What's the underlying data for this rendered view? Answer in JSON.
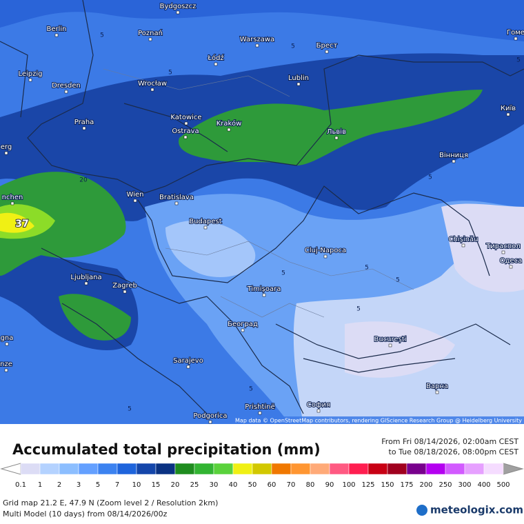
{
  "map": {
    "cities": [
      "Bydgoszcz",
      "Berlin",
      "Poznań",
      "Warszawa",
      "Брест",
      "Гоме",
      "Łódź",
      "Leipzig",
      "Lublin",
      "Dresden",
      "Wrocław",
      "Київ",
      "Praha",
      "Katowice",
      "Kraków",
      "Ostrava",
      "Львів",
      "erg",
      "Вінниця",
      "Wien",
      "Bratislava",
      "nchen",
      "Budapest",
      "Chișinău",
      "Тираспол",
      "Cluj-Napoca",
      "Одеса",
      "Ljubljana",
      "Zagreb",
      "Timișoara",
      "Београд",
      "gna",
      "București",
      "nze",
      "Sarajevo",
      "Варна",
      "Podgorica",
      "Prishtinë",
      "София"
    ],
    "contour_labels": [
      "5",
      "5",
      "5",
      "5",
      "5",
      "20",
      "37",
      "5",
      "5",
      "5",
      "5",
      "5",
      "5"
    ],
    "attribution": "Map data © OpenStreetMap contributors, rendering GIScience Research Group @ Heidelberg University"
  },
  "title": "Accumulated total precipitation (mm)",
  "period": {
    "from": "From Fri 08/14/2026, 02:00am CEST",
    "to": "to Tue 08/18/2026, 08:00pm CEST"
  },
  "legend": {
    "values": [
      0.1,
      1,
      2,
      3,
      5,
      7,
      10,
      15,
      20,
      25,
      30,
      40,
      50,
      60,
      70,
      80,
      90,
      100,
      125,
      150,
      175,
      200,
      250,
      300,
      400,
      500
    ],
    "colors": [
      "#dcdcf5",
      "#b4d2ff",
      "#8cbeff",
      "#64a0ff",
      "#3c82f0",
      "#1e64dc",
      "#1446aa",
      "#0a3282",
      "#1e8c1e",
      "#32b432",
      "#5ad23c",
      "#f0f014",
      "#d2c800",
      "#f07800",
      "#ff9632",
      "#ffaa78",
      "#ff5a82",
      "#ff1e50",
      "#c80014",
      "#a0001e",
      "#78008c",
      "#b400f0",
      "#d25aff",
      "#e6a0ff",
      "#f5dcff"
    ]
  },
  "footer": {
    "grid": "Grid map 21.2 E, 47.9 N (Zoom level 2 / Resolution 2km)",
    "model": "Multi Model (10 days) from 08/14/2026/00z",
    "brand": "meteologix.com"
  }
}
